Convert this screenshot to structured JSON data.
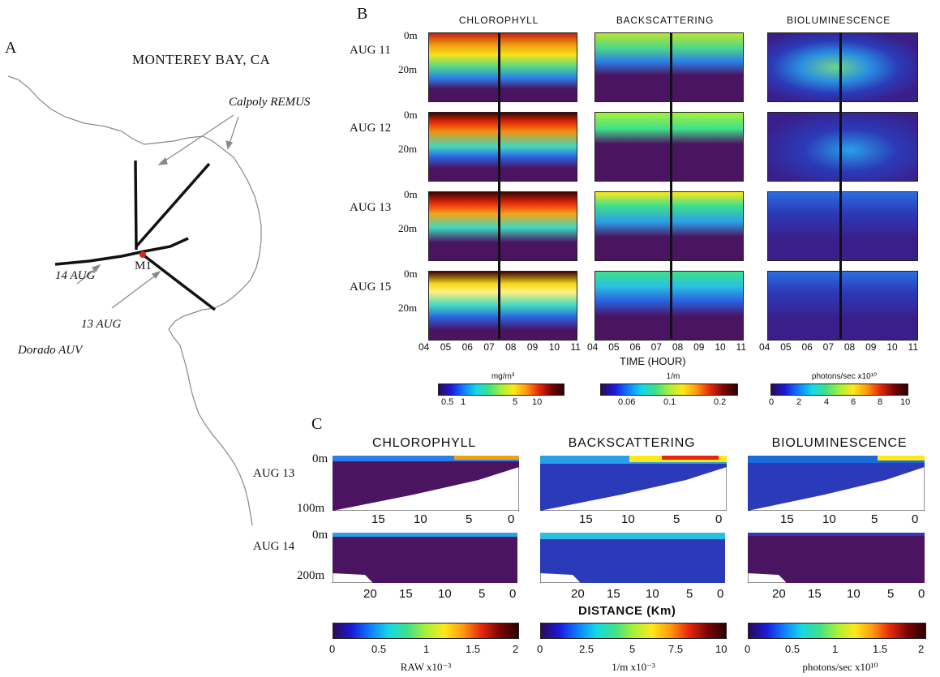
{
  "panel_a": {
    "letter": "A",
    "title": "MONTEREY BAY, CA",
    "labels": {
      "calpoly": "Calpoly REMUS",
      "m1": "M1",
      "aug14": "14 AUG",
      "aug13": "13 AUG",
      "dorado": "Dorado AUV"
    }
  },
  "panel_b": {
    "letter": "B",
    "columns": [
      "CHLOROPHYLL",
      "BACKSCATTERING",
      "BIOLUMINESCENCE"
    ],
    "rows": [
      "AUG 11",
      "AUG 12",
      "AUG 13",
      "AUG 15"
    ],
    "depth_labels": [
      "0m",
      "20m"
    ],
    "time_ticks": [
      "04",
      "05",
      "06",
      "07",
      "08",
      "09",
      "10",
      "11"
    ],
    "time_axis_label": "TIME (HOUR)",
    "colorbars": [
      {
        "unit": "mg/m³",
        "ticks": [
          "0.5",
          "1",
          "5",
          "10"
        ]
      },
      {
        "unit": "1/m",
        "ticks": [
          "0.06",
          "0.1",
          "0.2"
        ]
      },
      {
        "unit": "photons/sec x10¹⁰",
        "ticks": [
          "0",
          "2",
          "4",
          "6",
          "8",
          "10"
        ]
      }
    ]
  },
  "panel_c": {
    "letter": "C",
    "columns": [
      "CHLOROPHYLL",
      "BACKSCATTERING",
      "BIOLUMINESCENCE"
    ],
    "rows": [
      {
        "date": "AUG 13",
        "depth_top": "0m",
        "depth_bottom": "100m",
        "distance_ticks": [
          "15",
          "10",
          "5",
          "0"
        ]
      },
      {
        "date": "AUG 14",
        "depth_top": "0m",
        "depth_bottom": "200m",
        "distance_ticks": [
          "20",
          "15",
          "10",
          "5",
          "0"
        ]
      }
    ],
    "distance_axis_label": "DISTANCE (Km)",
    "colorbars": [
      {
        "unit": "RAW x10⁻³",
        "ticks": [
          "0",
          "0.5",
          "1",
          "1.5",
          "2"
        ]
      },
      {
        "unit": "1/m x10⁻³",
        "ticks": [
          "0",
          "2.5",
          "5",
          "7.5",
          "10"
        ]
      },
      {
        "unit": "photons/sec x10¹⁰",
        "ticks": [
          "0",
          "0.5",
          "1",
          "1.5",
          "2"
        ]
      }
    ]
  },
  "colors": {
    "water_purple": "#4a1460",
    "line": "#111111",
    "red_marker": "#d8261c"
  }
}
